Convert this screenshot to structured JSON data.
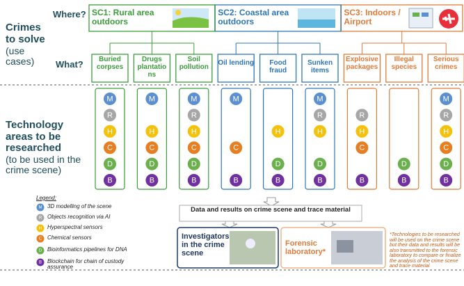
{
  "left_labels": {
    "crimes": "Crimes to solve",
    "crimes_sub": "(use cases)",
    "tech": "Technology areas to be researched",
    "tech_sub": "(to be used in the crime scene)"
  },
  "where": "Where?",
  "what": "What?",
  "scenarios": [
    {
      "label": "SC1: Rural area outdoors",
      "color": "#3a9d3a",
      "use_cases": [
        {
          "label": "Buried corpses",
          "techs": [
            "M",
            "R",
            "H",
            "C",
            "D",
            "B"
          ]
        },
        {
          "label": "Drugs plantatio ns",
          "techs": [
            "M",
            "H",
            "C",
            "D",
            "B"
          ]
        },
        {
          "label": "Soil pollution",
          "techs": [
            "M",
            "R",
            "H",
            "C",
            "D",
            "B"
          ]
        }
      ]
    },
    {
      "label": "SC2: Coastal area outdoors",
      "color": "#2e75b6",
      "use_cases": [
        {
          "label": "Oil lending",
          "techs": [
            "M",
            "C",
            "B"
          ]
        },
        {
          "label": "Food fraud",
          "techs": [
            "H",
            "D",
            "B"
          ]
        },
        {
          "label": "Sunken items",
          "techs": [
            "M",
            "R",
            "H",
            "D",
            "B"
          ]
        }
      ]
    },
    {
      "label": "SC3: Indoors / Airport",
      "color": "#e07b39",
      "use_cases": [
        {
          "label": "Explosive packages",
          "techs": [
            "R",
            "H",
            "C",
            "B"
          ]
        },
        {
          "label": "Illegal species",
          "techs": [
            "D",
            "B"
          ]
        },
        {
          "label": "Serious crimes",
          "techs": [
            "M",
            "R",
            "H",
            "C",
            "D",
            "B"
          ]
        }
      ]
    }
  ],
  "legend_title": "Legend:",
  "technologies": [
    {
      "letter": "M",
      "label": "3D modelling of the scene",
      "color": "#5b8fd0"
    },
    {
      "letter": "R",
      "label": "Objects recognition via AI",
      "color": "#a6a6a6"
    },
    {
      "letter": "H",
      "label": "Hyperspectral sensors",
      "color": "#f4c20d"
    },
    {
      "letter": "C",
      "label": "Chemical sensors",
      "color": "#e67e22"
    },
    {
      "letter": "D",
      "label": "Bioinformatics pipelines for DNA",
      "color": "#6ab04c"
    },
    {
      "letter": "B",
      "label": "Blockchain for chain of custody assurance",
      "color": "#7030a0"
    }
  ],
  "flow": {
    "data_box": "Data and results on crime scene and trace material",
    "investigators": "Investigators in the crime scene",
    "laboratory": "Forensic laboratory*",
    "footnote": "*Technologies to be researched will be used on the crime scene but their data and results will be also transmitted to the forensic laboratory to compare or finalize the analysis of the crime scene and trace material"
  }
}
